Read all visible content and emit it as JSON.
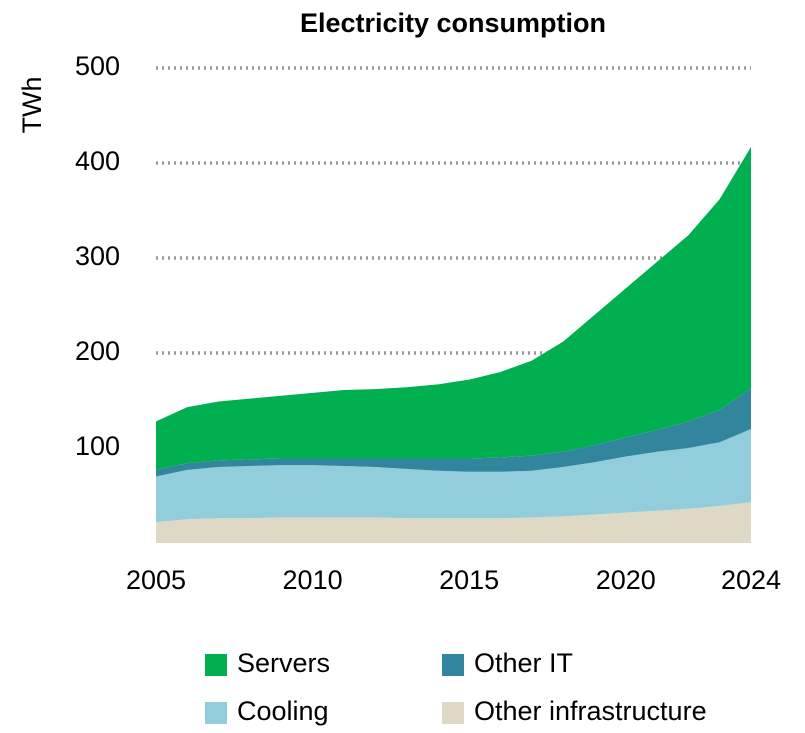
{
  "chart_data": {
    "type": "stacked-area",
    "title": "Electricity consumption",
    "y_label": "TWh",
    "x": [
      2005,
      2006,
      2007,
      2008,
      2009,
      2010,
      2011,
      2012,
      2013,
      2014,
      2015,
      2016,
      2017,
      2018,
      2019,
      2020,
      2021,
      2022,
      2023,
      2024
    ],
    "series": [
      {
        "name": "Servers",
        "color": "#00b050",
        "values": [
          51,
          59,
          62,
          64,
          66,
          69,
          72,
          73,
          75,
          78,
          83,
          90,
          100,
          116,
          137,
          157,
          177,
          196,
          222,
          254
        ]
      },
      {
        "name": "Other IT",
        "color": "#31859c",
        "values": [
          7,
          7,
          7,
          7,
          7,
          7,
          8,
          9,
          11,
          13,
          14,
          15,
          16,
          16,
          18,
          20,
          23,
          28,
          34,
          43
        ]
      },
      {
        "name": "Cooling",
        "color": "#92cddc",
        "values": [
          48,
          52,
          54,
          55,
          55,
          55,
          54,
          53,
          52,
          50,
          49,
          49,
          49,
          52,
          55,
          59,
          62,
          64,
          67,
          77
        ]
      },
      {
        "name": "Other infrastructure",
        "color": "#ddd9c4",
        "values": [
          22,
          25,
          26,
          26,
          27,
          27,
          27,
          27,
          26,
          26,
          26,
          26,
          27,
          28,
          30,
          32,
          34,
          36,
          39,
          43
        ]
      }
    ],
    "xlim": [
      2005,
      2024
    ],
    "xticks": [
      2005,
      2010,
      2015,
      2020,
      2024
    ],
    "ylim": [
      0,
      500
    ],
    "yticks": [
      100,
      200,
      300,
      400,
      500
    ],
    "grid": true
  }
}
